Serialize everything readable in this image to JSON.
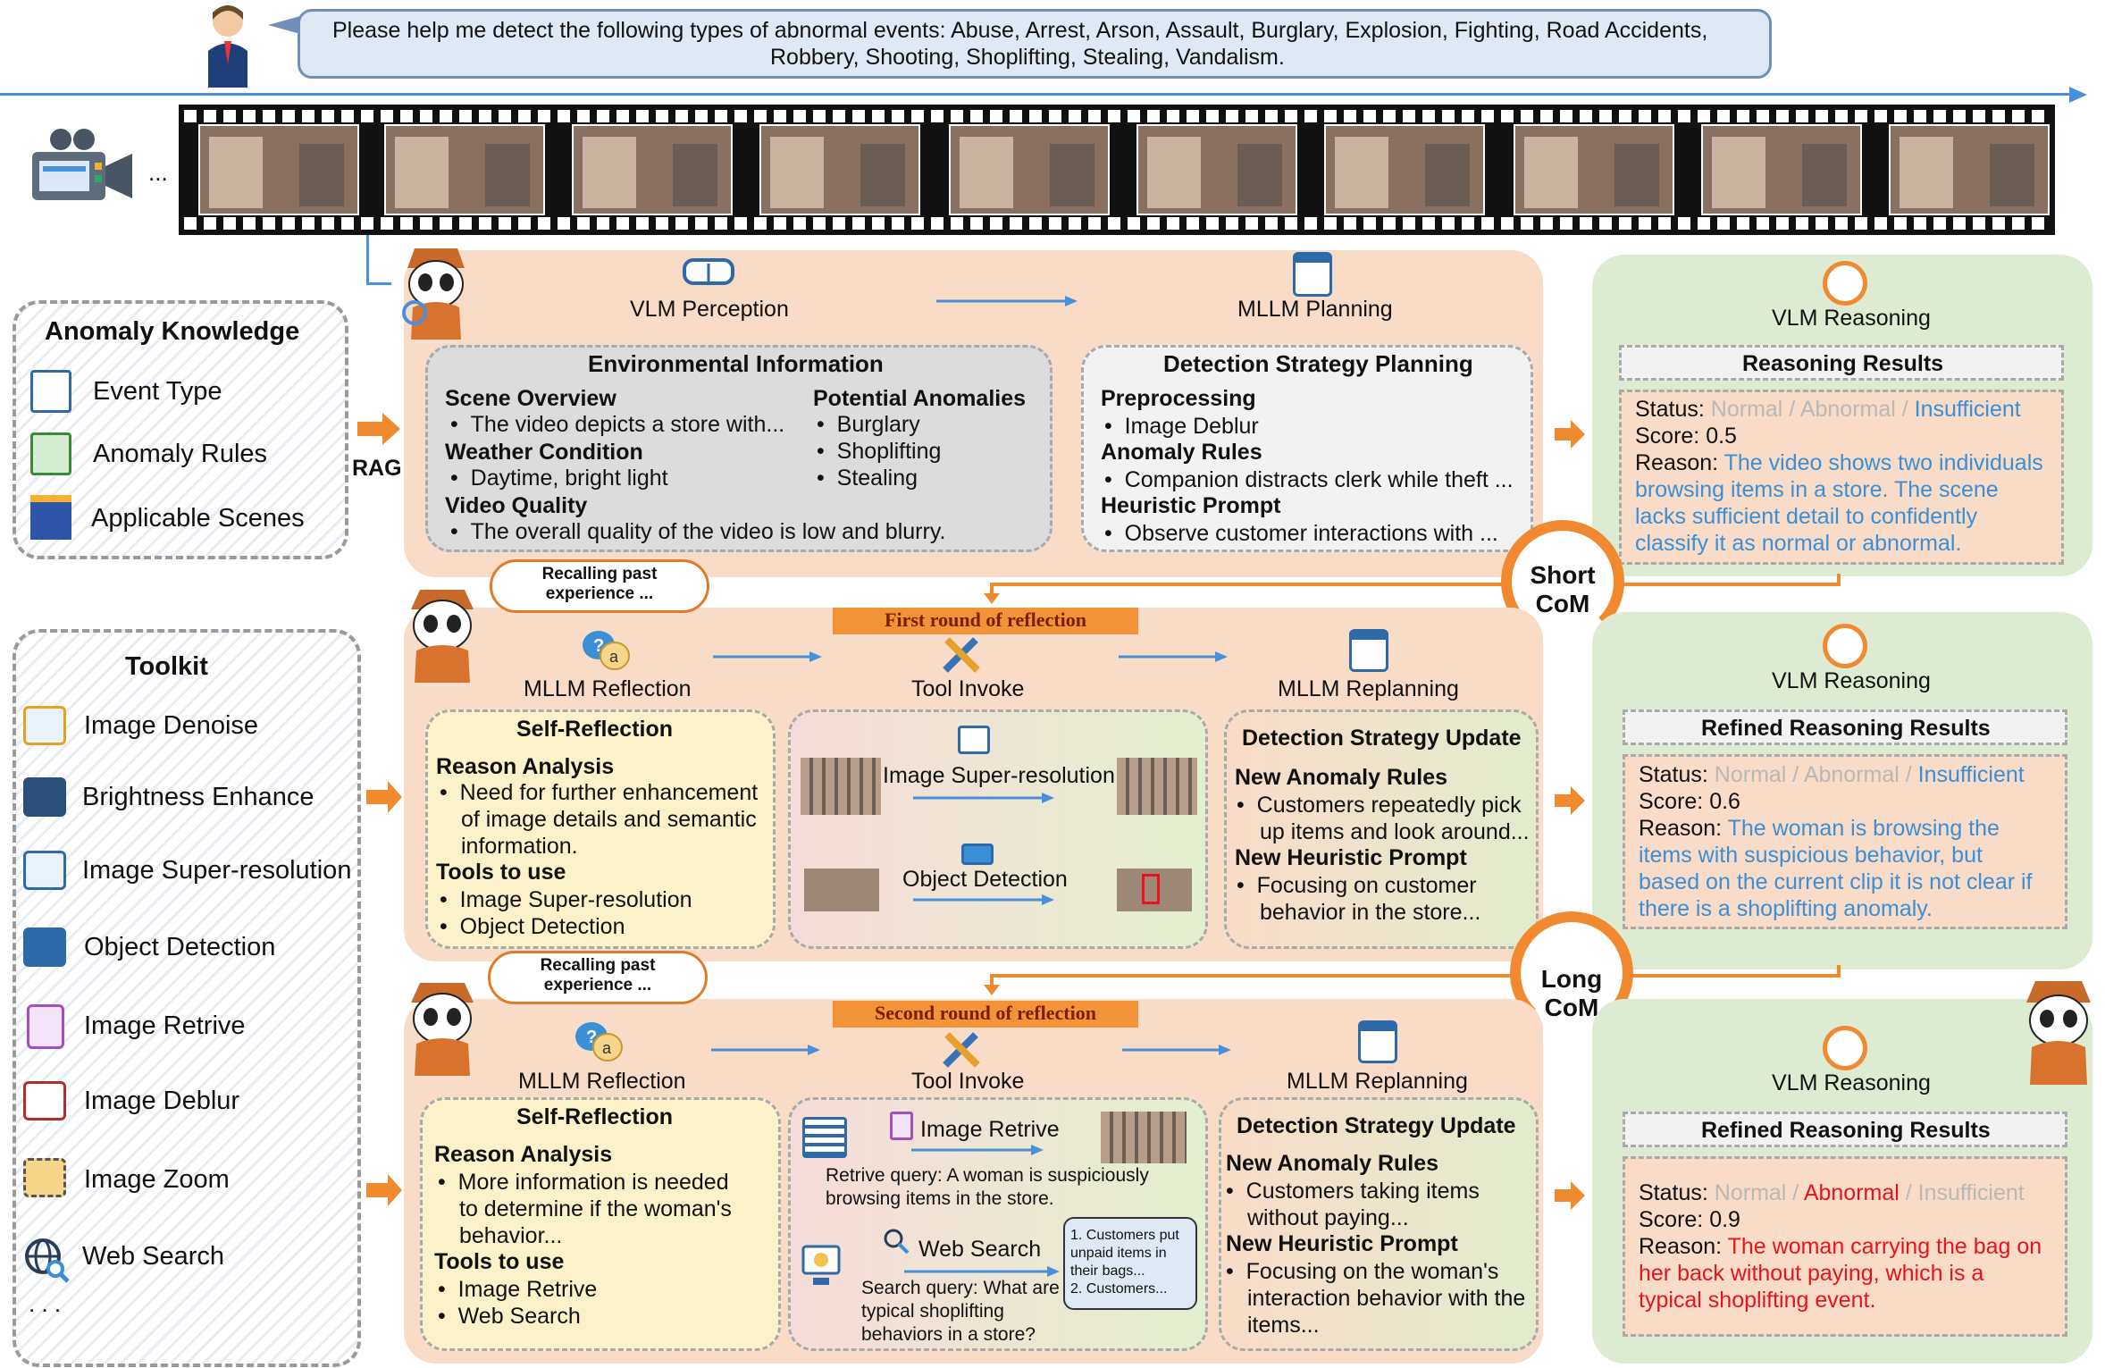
{
  "prompt": {
    "line1": "Please help me detect the following types of abnormal events: Abuse, Arrest, Arson, Assault, Burglary, Explosion, Fighting, Road Accidents,",
    "line2": "Robbery, Shooting, Shoplifting, Stealing, Vandalism."
  },
  "video": {
    "ellipsis": "..."
  },
  "knowledge": {
    "title": "Anomaly Knowledge",
    "items": [
      "Event Type",
      "Anomaly Rules",
      "Applicable Scenes"
    ]
  },
  "rag_label": "RAG",
  "toolkit": {
    "title": "Toolkit",
    "items": [
      "Image Denoise",
      "Brightness Enhance",
      "Image Super-resolution",
      "Object Detection",
      "Image Retrive",
      "Image Deblur",
      "Image Zoom",
      "Web Search"
    ],
    "ellipsis": ". . ."
  },
  "stage1": {
    "perception": "VLM Perception",
    "planning": "MLLM Planning",
    "env": {
      "title": "Environmental Information",
      "scene_h": "Scene Overview",
      "scene_b": "The video depicts a  store with...",
      "weather_h": "Weather Condition",
      "weather_b": "Daytime, bright light",
      "quality_h": "Video Quality",
      "quality_b": "The overall quality of the video is low and blurry.",
      "anom_h": "Potential Anomalies",
      "anom": [
        "Burglary",
        "Shoplifting",
        "Stealing"
      ]
    },
    "plan": {
      "title": "Detection Strategy Planning",
      "pre_h": "Preprocessing",
      "pre_b": "Image Deblur",
      "rules_h": "Anomaly Rules",
      "rules_b": "Companion distracts clerk while theft ...",
      "heur_h": "Heuristic Prompt",
      "heur_b": "Observe customer interactions with ..."
    }
  },
  "reason1": {
    "head": "VLM Reasoning",
    "title": "Reasoning Results",
    "status_label": "Status:",
    "normal": "Normal",
    "sep": " / ",
    "abnormal": "Abnormal",
    "insufficient": "Insufficient",
    "score": "Score: 0.5",
    "reason_label": "Reason:",
    "reason": [
      "The video shows two individuals",
      "browsing items in a store. The scene",
      "lacks sufficient detail to confidently",
      "classify it as normal or abnormal."
    ]
  },
  "short_com": {
    "l1": "Short",
    "l2": "CoM"
  },
  "long_com": {
    "l1": "Long",
    "l2": "CoM"
  },
  "round1": {
    "cloud": "Recalling past experience ...",
    "badge": "First round of reflection",
    "reflection": "MLLM Reflection",
    "tool": "Tool Invoke",
    "replan": "MLLM Replanning",
    "self": {
      "title": "Self-Reflection",
      "ra_h": "Reason Analysis",
      "ra": [
        "Need for further enhancement",
        "of image details and semantic",
        "information."
      ],
      "tu_h": "Tools to use",
      "tu": [
        "Image Super-resolution",
        "Object Detection"
      ]
    },
    "tools": {
      "t1": "Image Super-resolution",
      "t2": "Object Detection"
    },
    "update": {
      "title": "Detection Strategy Update",
      "nr_h": "New Anomaly Rules",
      "nr": [
        "Customers repeatedly pick",
        "up items and look around..."
      ],
      "nh_h": "New Heuristic Prompt",
      "nh": [
        "Focusing on customer",
        "behavior in the store..."
      ]
    }
  },
  "reason2": {
    "head": "VLM Reasoning",
    "title": "Refined Reasoning Results",
    "status_label": "Status:",
    "normal": "Normal",
    "sep": " / ",
    "abnormal": "Abnormal",
    "insufficient": "Insufficient",
    "score": "Score: 0.6",
    "reason_label": "Reason:",
    "reason": [
      "The woman is browsing the",
      "items with suspicious behavior, but",
      "based on the current clip it is not clear if",
      "there is a shoplifting anomaly."
    ]
  },
  "round2": {
    "cloud": "Recalling past experience ...",
    "badge": "Second round of reflection",
    "reflection": "MLLM Reflection",
    "tool": "Tool Invoke",
    "replan": "MLLM Replanning",
    "self": {
      "title": "Self-Reflection",
      "ra_h": "Reason Analysis",
      "ra": [
        "More information is needed",
        "to determine if the woman's",
        "behavior..."
      ],
      "tu_h": "Tools to use",
      "tu": [
        "Image Retrive",
        "Web Search"
      ]
    },
    "tools": {
      "t1": "Image Retrive",
      "q1": [
        "Retrive query: A woman is suspiciously",
        "browsing items in the store."
      ],
      "t2": "Web Search",
      "q2": [
        "Search query: What are",
        "typical shoplifting",
        "behaviors in a store?"
      ],
      "bubble": [
        "1. Customers put",
        "unpaid items in",
        "their bags...",
        "2. Customers..."
      ]
    },
    "update": {
      "title": "Detection Strategy Update",
      "nr_h": "New Anomaly Rules",
      "nr": [
        "Customers taking items",
        "without paying..."
      ],
      "nh_h": "New Heuristic Prompt",
      "nh": [
        "Focusing on the woman's",
        "interaction behavior with the",
        "items..."
      ]
    }
  },
  "reason3": {
    "head": "VLM Reasoning",
    "title": "Refined Reasoning Results",
    "status_label": "Status:",
    "normal": "Normal",
    "sep": " / ",
    "abnormal": "Abnormal",
    "insufficient": "Insufficient",
    "score": "Score: 0.9",
    "reason_label": "Reason:",
    "reason": [
      "The woman carrying the bag on",
      "her back without paying, which is a",
      "typical shoplifting event."
    ]
  },
  "colors": {
    "orange": "#f8dcc8",
    "green": "#dcebd2",
    "blue_text": "#3a8fd6",
    "red_text": "#e8141b",
    "grey_text": "#b8b8b8",
    "arrow_orange": "#ef8a2e",
    "arrow_blue": "#4a90d9"
  }
}
